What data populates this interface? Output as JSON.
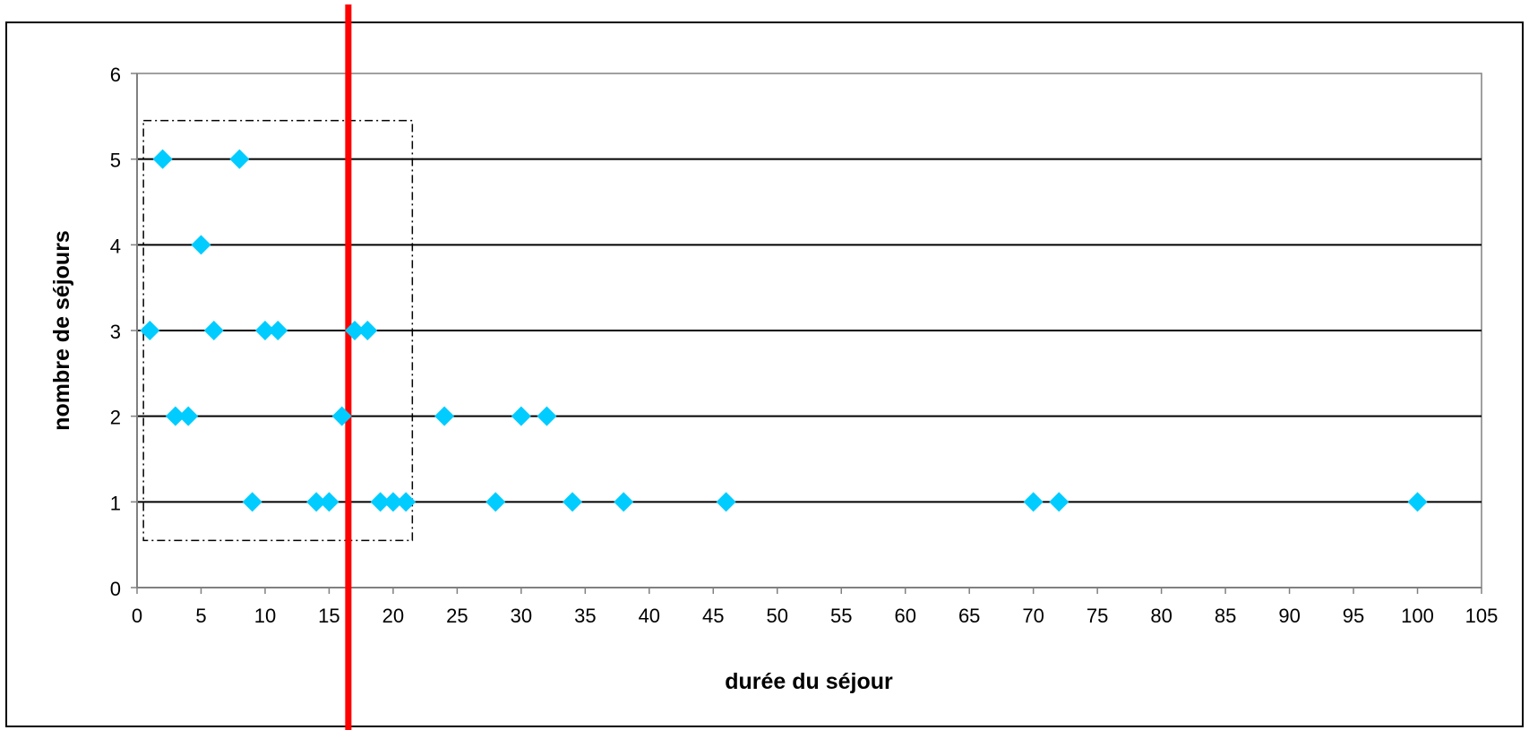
{
  "chart_data": {
    "type": "scatter",
    "title": "",
    "xlabel": "durée du séjour",
    "ylabel": "nombre de séjours",
    "xlim": [
      0,
      105
    ],
    "ylim": [
      0,
      6
    ],
    "x_ticks": [
      "0",
      "5",
      "10",
      "15",
      "20",
      "25",
      "30",
      "35",
      "40",
      "45",
      "50",
      "55",
      "60",
      "65",
      "70",
      "75",
      "80",
      "85",
      "90",
      "95",
      "100",
      "105"
    ],
    "y_ticks": [
      "0",
      "1",
      "2",
      "3",
      "4",
      "5",
      "6"
    ],
    "grid": "horizontal major gridlines",
    "legend": "none",
    "series": [
      {
        "marker": "diamond",
        "color": "#00ccff",
        "points": [
          {
            "x": 2,
            "y": 5
          },
          {
            "x": 8,
            "y": 5
          },
          {
            "x": 5,
            "y": 4
          },
          {
            "x": 1,
            "y": 3
          },
          {
            "x": 6,
            "y": 3
          },
          {
            "x": 10,
            "y": 3
          },
          {
            "x": 11,
            "y": 3
          },
          {
            "x": 17,
            "y": 3
          },
          {
            "x": 18,
            "y": 3
          },
          {
            "x": 3,
            "y": 2
          },
          {
            "x": 4,
            "y": 2
          },
          {
            "x": 16,
            "y": 2
          },
          {
            "x": 24,
            "y": 2
          },
          {
            "x": 30,
            "y": 2
          },
          {
            "x": 32,
            "y": 2
          },
          {
            "x": 9,
            "y": 1
          },
          {
            "x": 14,
            "y": 1
          },
          {
            "x": 15,
            "y": 1
          },
          {
            "x": 19,
            "y": 1
          },
          {
            "x": 20,
            "y": 1
          },
          {
            "x": 21,
            "y": 1
          },
          {
            "x": 28,
            "y": 1
          },
          {
            "x": 34,
            "y": 1
          },
          {
            "x": 38,
            "y": 1
          },
          {
            "x": 46,
            "y": 1
          },
          {
            "x": 70,
            "y": 1
          },
          {
            "x": 72,
            "y": 1
          },
          {
            "x": 100,
            "y": 1
          }
        ]
      }
    ],
    "annotations": [
      {
        "type": "vertical-line",
        "x": 16.5,
        "color": "#ff0000"
      },
      {
        "type": "dash-dot-box",
        "x_range": [
          0.5,
          21.5
        ],
        "y_range": [
          0.55,
          5.45
        ],
        "color": "#000000"
      }
    ]
  }
}
